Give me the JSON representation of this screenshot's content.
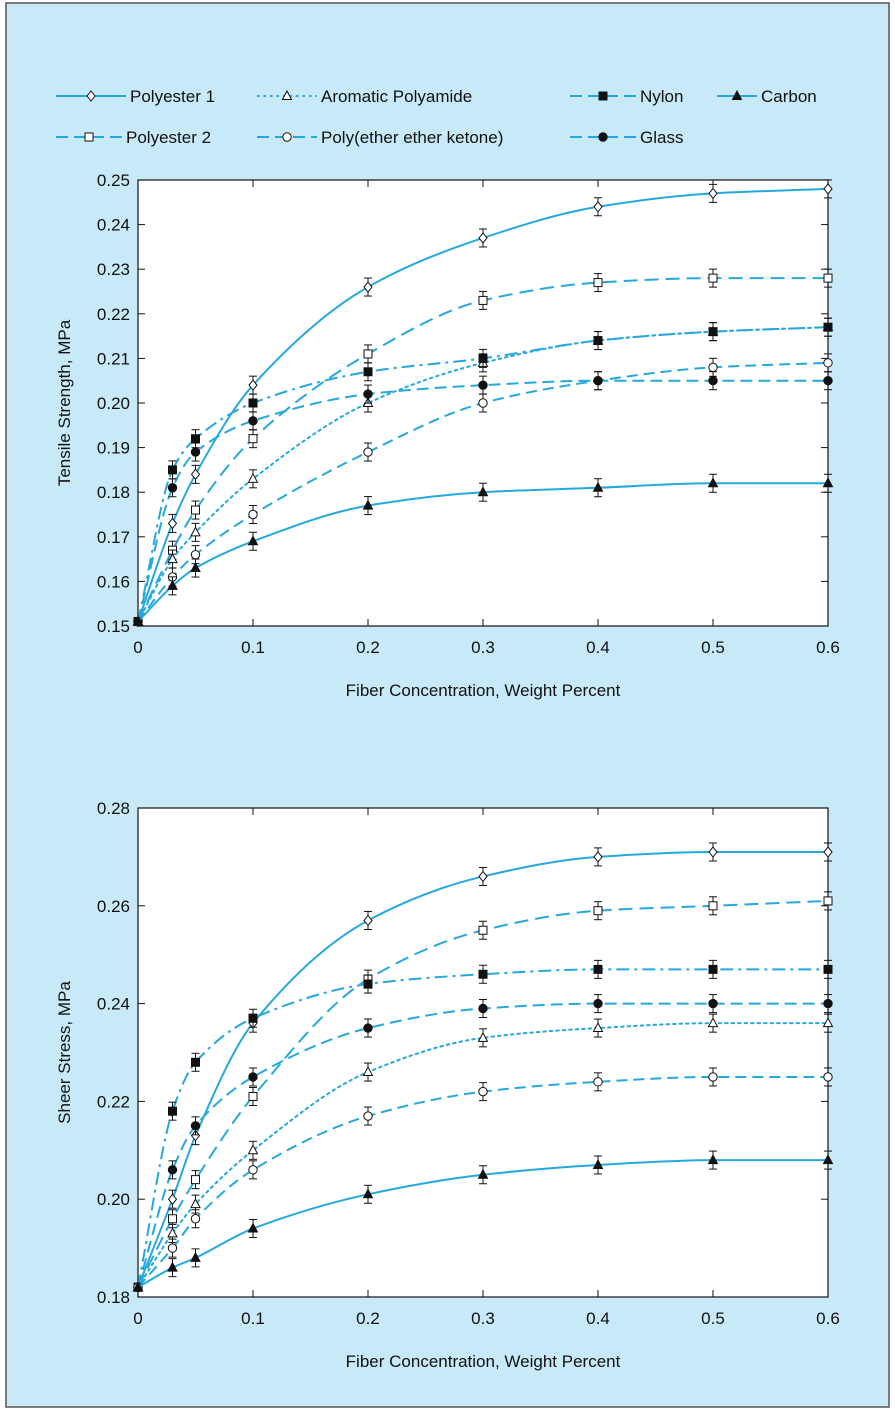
{
  "colors": {
    "panel_bg": "#c8eaf8",
    "panel_border": "#555555",
    "plot_bg": "#ffffff",
    "series": "#25a8de",
    "marker_dark": "#111111"
  },
  "legend": {
    "items": [
      {
        "series": "Polyester 1",
        "label": "Polyester 1",
        "marker": "diamond-open",
        "dash": "solid"
      },
      {
        "series": "Aromatic Polyamide",
        "label": "Aromatic Polyamide",
        "marker": "triangle-open",
        "dash": "dotted"
      },
      {
        "series": "Nylon",
        "label": "Nylon",
        "marker": "square-filled",
        "dash": "dashed"
      },
      {
        "series": "Carbon",
        "label": "Carbon",
        "marker": "triangle-filled",
        "dash": "solid"
      },
      {
        "series": "Polyester 2",
        "label": "Polyester 2",
        "marker": "square-open",
        "dash": "dashed"
      },
      {
        "series": "Poly(ether ether ketone)",
        "label": "Poly(ether ether ketone)",
        "marker": "circle-open",
        "dash": "dashed"
      },
      {
        "series": "Glass",
        "label": "Glass",
        "marker": "circle-filled",
        "dash": "dashed"
      }
    ]
  },
  "chart_data": [
    {
      "type": "line",
      "title": "",
      "xlabel": "Fiber Concentration, Weight Percent",
      "ylabel": "Tensile Strength, MPa",
      "xlim": [
        0,
        0.6
      ],
      "ylim": [
        0.15,
        0.25
      ],
      "xticks": [
        0,
        0.1,
        0.2,
        0.3,
        0.4,
        0.5,
        0.6
      ],
      "xtick_labels": [
        "0",
        "0.1",
        "0.2",
        "0.3",
        "0.4",
        "0.5",
        "0.6"
      ],
      "yticks": [
        0.15,
        0.16,
        0.17,
        0.18,
        0.19,
        0.2,
        0.21,
        0.22,
        0.23,
        0.24,
        0.25
      ],
      "ytick_labels": [
        "0.15",
        "0.16",
        "0.17",
        "0.18",
        "0.19",
        "0.20",
        "0.21",
        "0.22",
        "0.23",
        "0.24",
        "0.25"
      ],
      "error_bars": true,
      "grid": false,
      "legend_position": "top",
      "x": [
        0,
        0.03,
        0.05,
        0.1,
        0.2,
        0.3,
        0.4,
        0.5,
        0.6
      ],
      "series": [
        {
          "name": "Polyester 1",
          "values": [
            0.151,
            0.173,
            0.184,
            0.204,
            0.226,
            0.237,
            0.244,
            0.247,
            0.248
          ]
        },
        {
          "name": "Polyester 2",
          "values": [
            0.151,
            0.167,
            0.176,
            0.192,
            0.211,
            0.223,
            0.227,
            0.228,
            0.228
          ]
        },
        {
          "name": "Aromatic Polyamide",
          "values": [
            0.151,
            0.165,
            0.171,
            0.183,
            0.2,
            0.209,
            0.214,
            0.216,
            0.217
          ]
        },
        {
          "name": "Poly(ether ether ketone)",
          "values": [
            0.151,
            0.161,
            0.166,
            0.175,
            0.189,
            0.2,
            0.205,
            0.208,
            0.209
          ]
        },
        {
          "name": "Nylon",
          "values": [
            0.151,
            0.185,
            0.192,
            0.2,
            0.207,
            0.21,
            0.214,
            0.216,
            0.217
          ]
        },
        {
          "name": "Glass",
          "values": [
            0.151,
            0.181,
            0.189,
            0.196,
            0.202,
            0.204,
            0.205,
            0.205,
            0.205
          ]
        },
        {
          "name": "Carbon",
          "values": [
            0.151,
            0.159,
            0.163,
            0.169,
            0.177,
            0.18,
            0.181,
            0.182,
            0.182
          ]
        }
      ]
    },
    {
      "type": "line",
      "title": "",
      "xlabel": "Fiber Concentration, Weight Percent",
      "ylabel": "Sheer Stress, MPa",
      "xlim": [
        0,
        0.6
      ],
      "ylim": [
        0.18,
        0.28
      ],
      "xticks": [
        0,
        0.1,
        0.2,
        0.3,
        0.4,
        0.5,
        0.6
      ],
      "xtick_labels": [
        "0",
        "0.1",
        "0.2",
        "0.3",
        "0.4",
        "0.5",
        "0.6"
      ],
      "yticks": [
        0.18,
        0.2,
        0.22,
        0.24,
        0.26,
        0.28
      ],
      "ytick_labels": [
        "0.18",
        "0.20",
        "0.22",
        "0.24",
        "0.26",
        "0.28"
      ],
      "error_bars": true,
      "grid": false,
      "legend_position": "none",
      "x": [
        0,
        0.03,
        0.05,
        0.1,
        0.2,
        0.3,
        0.4,
        0.5,
        0.6
      ],
      "series": [
        {
          "name": "Polyester 1",
          "values": [
            0.182,
            0.2,
            0.213,
            0.236,
            0.257,
            0.266,
            0.27,
            0.271,
            0.271
          ]
        },
        {
          "name": "Polyester 2",
          "values": [
            0.182,
            0.196,
            0.204,
            0.221,
            0.245,
            0.255,
            0.259,
            0.26,
            0.261
          ]
        },
        {
          "name": "Nylon",
          "values": [
            0.182,
            0.218,
            0.228,
            0.237,
            0.244,
            0.246,
            0.247,
            0.247,
            0.247
          ]
        },
        {
          "name": "Glass",
          "values": [
            0.182,
            0.206,
            0.215,
            0.225,
            0.235,
            0.239,
            0.24,
            0.24,
            0.24
          ]
        },
        {
          "name": "Aromatic Polyamide",
          "values": [
            0.182,
            0.193,
            0.199,
            0.21,
            0.226,
            0.233,
            0.235,
            0.236,
            0.236
          ]
        },
        {
          "name": "Poly(ether ether ketone)",
          "values": [
            0.182,
            0.19,
            0.196,
            0.206,
            0.217,
            0.222,
            0.224,
            0.225,
            0.225
          ]
        },
        {
          "name": "Carbon",
          "values": [
            0.182,
            0.186,
            0.188,
            0.194,
            0.201,
            0.205,
            0.207,
            0.208,
            0.208
          ]
        }
      ]
    }
  ]
}
